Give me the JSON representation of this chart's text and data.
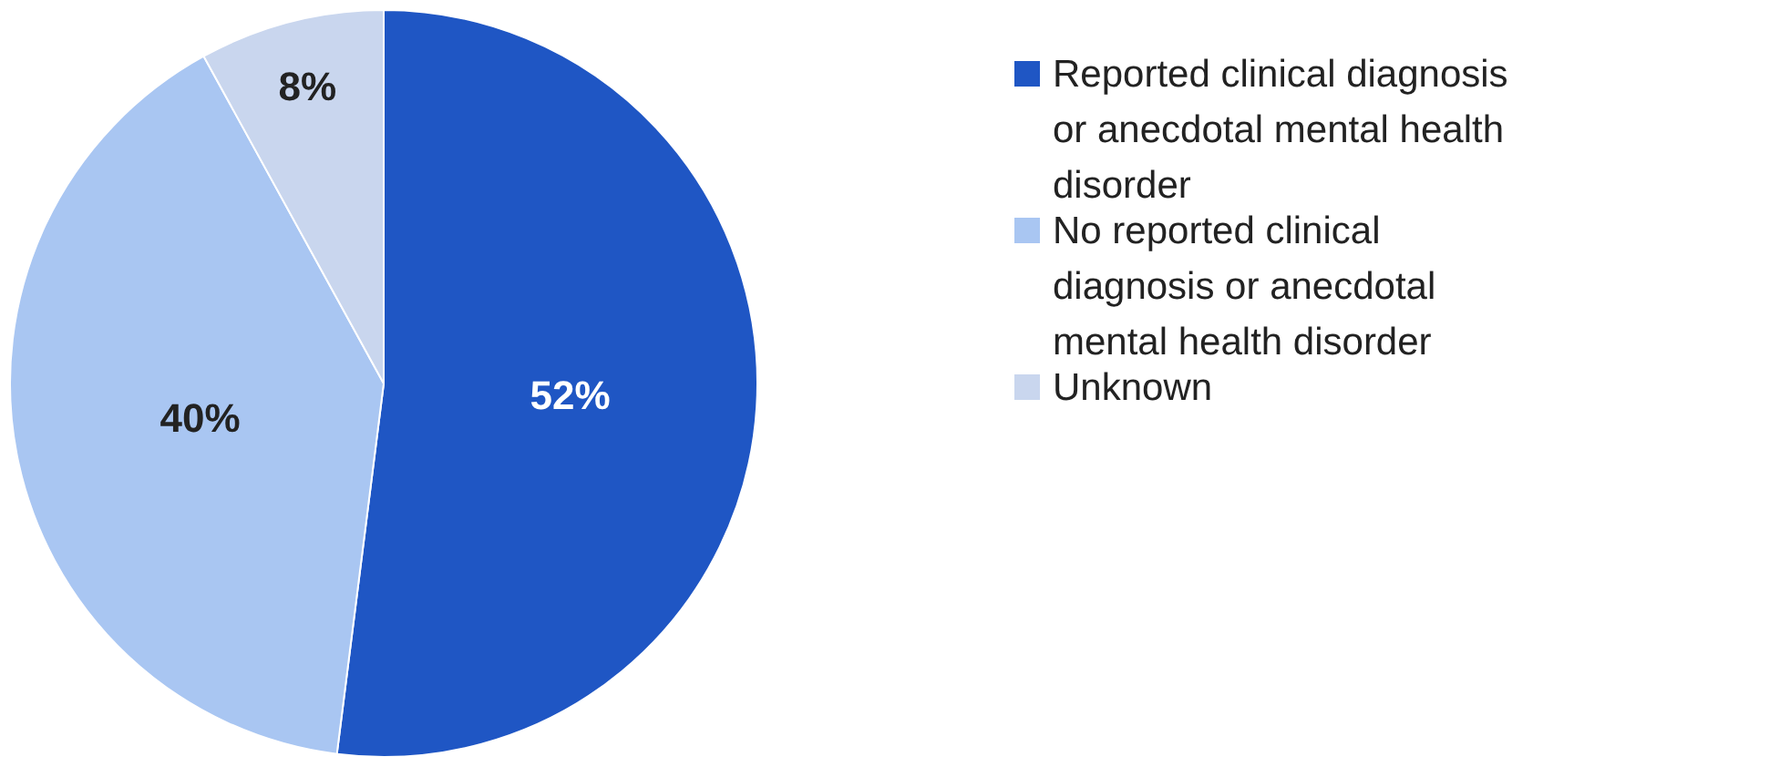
{
  "chart_data": {
    "type": "pie",
    "categories": [
      "Reported clinical diagnosis or anecdotal mental health disorder",
      "No reported clinical diagnosis or anecdotal mental health disorder",
      "Unknown"
    ],
    "values": [
      52,
      40,
      8
    ],
    "colors": [
      "#1f56c4",
      "#a9c6f2",
      "#c9d6ee"
    ],
    "value_labels": [
      "52%",
      "40%",
      "8%"
    ],
    "legend": "right"
  }
}
